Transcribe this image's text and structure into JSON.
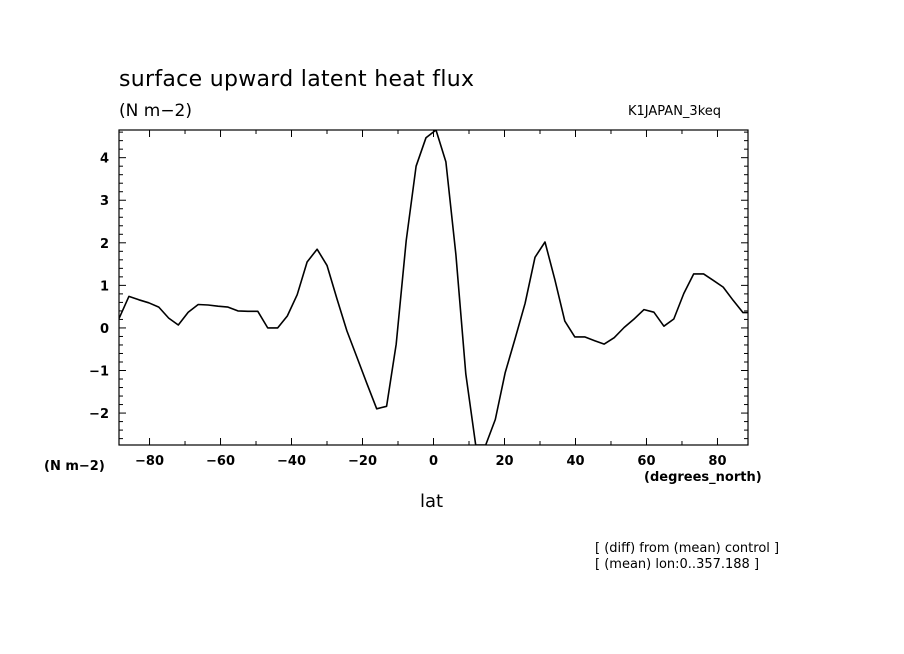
{
  "chart_data": {
    "type": "line",
    "title": "surface upward latent heat flux",
    "units_label": "(N m−2)",
    "run_label": "K1JAPAN_3keq",
    "y_axis_unit": "(N m−2)",
    "x_axis_unit": "(degrees_north)",
    "xlabel": "lat",
    "notes": [
      "[ (diff) from (mean) control ]",
      "[ (mean) lon:0..357.188 ]"
    ],
    "xlim": [
      -88.6,
      88.6
    ],
    "ylim": [
      -2.75,
      4.65
    ],
    "x_ticks": [
      -80,
      -60,
      -40,
      -20,
      0,
      20,
      40,
      60,
      80
    ],
    "x_tick_labels": [
      "−80",
      "−60",
      "−40",
      "−20",
      "0",
      "20",
      "40",
      "60",
      "80"
    ],
    "y_ticks": [
      -2,
      -1,
      0,
      1,
      2,
      3,
      4
    ],
    "y_tick_labels": [
      "−2",
      "−1",
      "0",
      "1",
      "2",
      "3",
      "4"
    ],
    "grid": false,
    "series": [
      {
        "x": [
          -88.6,
          -85.8,
          -83.0,
          -80.2,
          -77.4,
          -74.6,
          -71.9,
          -69.1,
          -66.3,
          -63.5,
          -60.7,
          -57.9,
          -55.1,
          -52.3,
          -49.5,
          -46.7,
          -43.9,
          -41.2,
          -38.4,
          -35.6,
          -32.8,
          -30.0,
          -27.2,
          -24.4,
          -21.6,
          -18.8,
          -16.0,
          -13.2,
          -10.5,
          -7.7,
          -4.9,
          -2.1,
          0.7,
          3.5,
          6.3,
          9.1,
          11.9,
          14.7,
          17.4,
          20.2,
          23.0,
          25.8,
          28.6,
          31.4,
          34.2,
          37.0,
          39.8,
          42.6,
          45.4,
          48.1,
          50.9,
          53.7,
          56.5,
          59.3,
          62.1,
          64.9,
          67.7,
          70.5,
          73.3,
          76.1,
          78.8,
          81.6,
          84.4,
          87.2,
          88.6
        ],
        "y": [
          0.22,
          0.74,
          0.66,
          0.59,
          0.49,
          0.23,
          0.07,
          0.37,
          0.55,
          0.54,
          0.51,
          0.49,
          0.4,
          0.39,
          0.39,
          0.0,
          0.0,
          0.28,
          0.78,
          1.55,
          1.85,
          1.47,
          0.69,
          -0.07,
          -0.68,
          -1.3,
          -1.9,
          -1.84,
          -0.38,
          2.05,
          3.8,
          4.47,
          4.65,
          3.9,
          1.72,
          -1.08,
          -2.75,
          -2.75,
          -2.15,
          -1.05,
          -0.25,
          0.58,
          1.66,
          2.02,
          1.13,
          0.16,
          -0.21,
          -0.21,
          -0.3,
          -0.38,
          -0.23,
          0.01,
          0.21,
          0.43,
          0.37,
          0.04,
          0.21,
          0.81,
          1.27,
          1.27,
          1.12,
          0.96,
          0.65,
          0.36,
          0.36
        ]
      }
    ]
  }
}
